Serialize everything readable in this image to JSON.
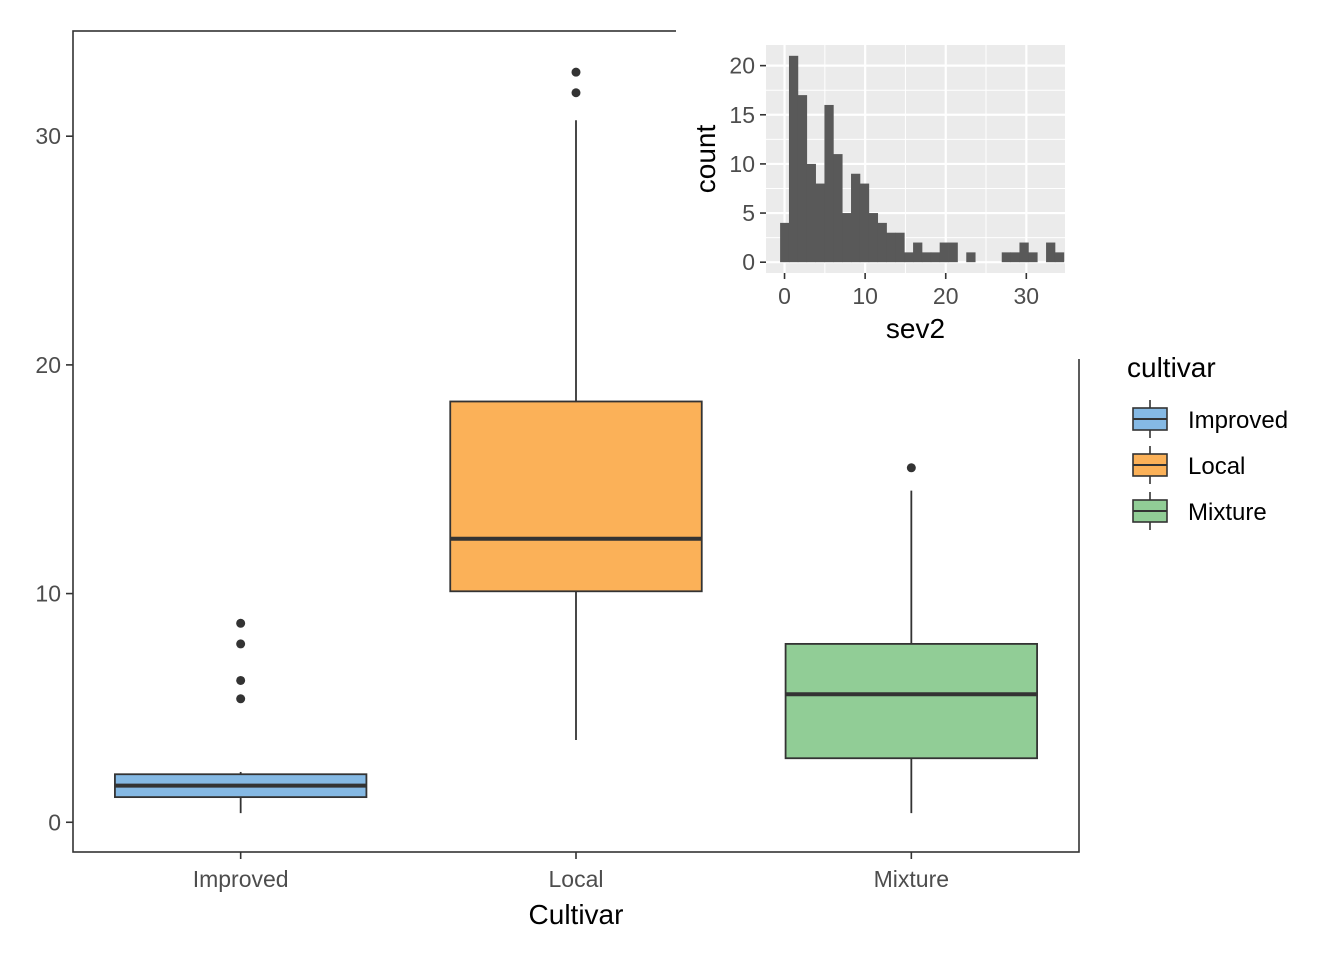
{
  "chart_data": [
    {
      "type": "boxplot",
      "xlabel": "Cultivar",
      "ylabel": "",
      "ylim": [
        -1.3,
        34.6
      ],
      "yticks": [
        0,
        10,
        20,
        30
      ],
      "grid": false,
      "categories": [
        "Improved",
        "Local",
        "Mixture"
      ],
      "colors": [
        "#85b9e4",
        "#fbb158",
        "#91cd96"
      ],
      "boxes": [
        {
          "category": "Improved",
          "min": 0.4,
          "q1": 1.1,
          "median": 1.6,
          "q3": 2.1,
          "max": 2.2,
          "outliers": [
            5.4,
            6.2,
            7.8,
            8.7
          ]
        },
        {
          "category": "Local",
          "min": 3.6,
          "q1": 10.1,
          "median": 12.4,
          "q3": 18.4,
          "max": 30.7,
          "outliers": [
            31.9,
            32.8
          ]
        },
        {
          "category": "Mixture",
          "min": 0.4,
          "q1": 2.8,
          "median": 5.6,
          "q3": 7.8,
          "max": 14.5,
          "outliers": [
            15.5
          ]
        }
      ],
      "legend": {
        "title": "cultivar",
        "position": "right",
        "items": [
          "Improved",
          "Local",
          "Mixture"
        ]
      }
    },
    {
      "type": "histogram",
      "xlabel": "sev2",
      "ylabel": "count",
      "xlim": [
        -2.3,
        34.8
      ],
      "ylim": [
        -1.1,
        22.1
      ],
      "xticks": [
        0,
        10,
        20,
        30
      ],
      "yticks": [
        0,
        5,
        10,
        15,
        20
      ],
      "grid": true,
      "bin_width": 1.1,
      "bin_start": -0.55,
      "counts": [
        4,
        21,
        17,
        10,
        8,
        16,
        11,
        5,
        9,
        8,
        5,
        4,
        3,
        3,
        1,
        2,
        1,
        1,
        2,
        2,
        0,
        1,
        0,
        0,
        0,
        1,
        1,
        2,
        1,
        0,
        2,
        1
      ],
      "bar_color": "#595959",
      "panel_color": "#ebebeb"
    }
  ]
}
